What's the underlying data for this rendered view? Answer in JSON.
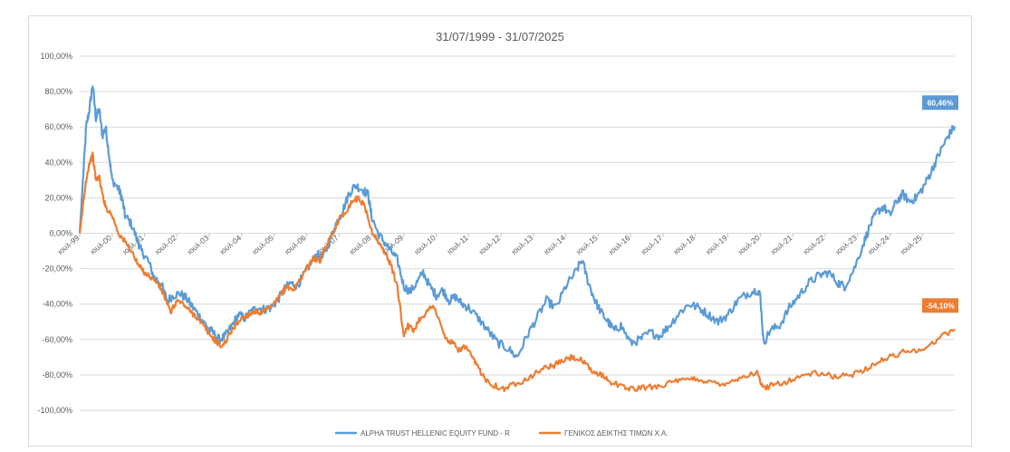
{
  "chart_data": {
    "type": "line",
    "title": "31/07/1999 - 31/07/2025",
    "ylim": [
      -100,
      100
    ],
    "yticks": [
      100,
      80,
      60,
      40,
      20,
      0,
      -20,
      -40,
      -60,
      -80,
      -100
    ],
    "ytick_labels": [
      "100,00%",
      "80,00%",
      "60,00%",
      "40,00%",
      "20,00%",
      "0,00%",
      "-20,00%",
      "-40,00%",
      "-60,00%",
      "-80,00%",
      "-100,00%"
    ],
    "xlim": [
      1999,
      2025
    ],
    "xtick_labels": [
      "ιουλ-99",
      "ιουλ-00",
      "ιουλ-01",
      "ιουλ-02",
      "ιουλ-03",
      "ιουλ-04",
      "ιουλ-05",
      "ιουλ-06",
      "ιουλ-07",
      "ιουλ-08",
      "ιουλ-09",
      "ιουλ-10",
      "ιουλ-11",
      "ιουλ-12",
      "ιουλ-13",
      "ιουλ-14",
      "ιουλ-15",
      "ιουλ-16",
      "ιουλ-17",
      "ιουλ-18",
      "ιουλ-19",
      "ιουλ-20",
      "ιουλ-21",
      "ιουλ-22",
      "ιουλ-23",
      "ιουλ-24",
      "ιουλ-25"
    ],
    "series": [
      {
        "name": "ALPHA TRUST HELLENIC EQUITY FUND - R",
        "color": "#5B9BD5",
        "end_label": "60,46%",
        "points": [
          [
            1999.0,
            0
          ],
          [
            1999.1,
            30
          ],
          [
            1999.2,
            60
          ],
          [
            1999.3,
            70
          ],
          [
            1999.4,
            84
          ],
          [
            1999.5,
            65
          ],
          [
            1999.6,
            70
          ],
          [
            1999.7,
            55
          ],
          [
            1999.8,
            60
          ],
          [
            1999.9,
            45
          ],
          [
            2000.0,
            30
          ],
          [
            2000.2,
            25
          ],
          [
            2000.3,
            20
          ],
          [
            2000.4,
            10
          ],
          [
            2000.6,
            5
          ],
          [
            2000.8,
            -5
          ],
          [
            2000.9,
            -10
          ],
          [
            2001.1,
            -15
          ],
          [
            2001.3,
            -25
          ],
          [
            2001.5,
            -28
          ],
          [
            2001.7,
            -38
          ],
          [
            2001.9,
            -35
          ],
          [
            2002.1,
            -34
          ],
          [
            2002.3,
            -37
          ],
          [
            2002.5,
            -42
          ],
          [
            2002.7,
            -47
          ],
          [
            2002.9,
            -52
          ],
          [
            2003.1,
            -56
          ],
          [
            2003.3,
            -60
          ],
          [
            2003.5,
            -58
          ],
          [
            2003.7,
            -52
          ],
          [
            2003.9,
            -46
          ],
          [
            2004.1,
            -48
          ],
          [
            2004.3,
            -44
          ],
          [
            2004.5,
            -42
          ],
          [
            2004.7,
            -43
          ],
          [
            2004.9,
            -42
          ],
          [
            2005.1,
            -38
          ],
          [
            2005.3,
            -32
          ],
          [
            2005.5,
            -28
          ],
          [
            2005.7,
            -30
          ],
          [
            2005.9,
            -24
          ],
          [
            2006.1,
            -18
          ],
          [
            2006.3,
            -12
          ],
          [
            2006.5,
            -14
          ],
          [
            2006.7,
            -5
          ],
          [
            2006.9,
            5
          ],
          [
            2007.1,
            12
          ],
          [
            2007.3,
            22
          ],
          [
            2007.5,
            27
          ],
          [
            2007.7,
            25
          ],
          [
            2007.9,
            22
          ],
          [
            2008.0,
            10
          ],
          [
            2008.2,
            0
          ],
          [
            2008.4,
            -5
          ],
          [
            2008.6,
            -10
          ],
          [
            2008.8,
            -15
          ],
          [
            2009.0,
            -30
          ],
          [
            2009.2,
            -33
          ],
          [
            2009.4,
            -28
          ],
          [
            2009.6,
            -22
          ],
          [
            2009.8,
            -30
          ],
          [
            2010.0,
            -35
          ],
          [
            2010.2,
            -32
          ],
          [
            2010.4,
            -38
          ],
          [
            2010.6,
            -36
          ],
          [
            2010.8,
            -40
          ],
          [
            2011.0,
            -42
          ],
          [
            2011.3,
            -48
          ],
          [
            2011.6,
            -55
          ],
          [
            2011.9,
            -62
          ],
          [
            2012.2,
            -65
          ],
          [
            2012.5,
            -70
          ],
          [
            2012.8,
            -58
          ],
          [
            2013.1,
            -48
          ],
          [
            2013.4,
            -38
          ],
          [
            2013.7,
            -42
          ],
          [
            2014.0,
            -30
          ],
          [
            2014.3,
            -22
          ],
          [
            2014.5,
            -15
          ],
          [
            2014.7,
            -28
          ],
          [
            2014.9,
            -38
          ],
          [
            2015.1,
            -45
          ],
          [
            2015.3,
            -50
          ],
          [
            2015.5,
            -55
          ],
          [
            2015.7,
            -52
          ],
          [
            2016.0,
            -62
          ],
          [
            2016.3,
            -60
          ],
          [
            2016.6,
            -56
          ],
          [
            2016.9,
            -58
          ],
          [
            2017.2,
            -52
          ],
          [
            2017.5,
            -45
          ],
          [
            2017.8,
            -40
          ],
          [
            2018.1,
            -42
          ],
          [
            2018.4,
            -46
          ],
          [
            2018.7,
            -50
          ],
          [
            2019.0,
            -46
          ],
          [
            2019.3,
            -38
          ],
          [
            2019.6,
            -34
          ],
          [
            2019.9,
            -32
          ],
          [
            2020.0,
            -35
          ],
          [
            2020.1,
            -62
          ],
          [
            2020.3,
            -55
          ],
          [
            2020.6,
            -52
          ],
          [
            2020.9,
            -42
          ],
          [
            2021.2,
            -35
          ],
          [
            2021.5,
            -28
          ],
          [
            2021.8,
            -24
          ],
          [
            2022.1,
            -22
          ],
          [
            2022.4,
            -28
          ],
          [
            2022.6,
            -30
          ],
          [
            2022.9,
            -20
          ],
          [
            2023.2,
            -5
          ],
          [
            2023.4,
            5
          ],
          [
            2023.6,
            12
          ],
          [
            2023.8,
            15
          ],
          [
            2024.0,
            10
          ],
          [
            2024.2,
            18
          ],
          [
            2024.4,
            22
          ],
          [
            2024.6,
            18
          ],
          [
            2024.8,
            20
          ],
          [
            2025.0,
            25
          ],
          [
            2025.2,
            32
          ],
          [
            2025.4,
            40
          ],
          [
            2025.6,
            48
          ],
          [
            2025.8,
            55
          ],
          [
            2026.0,
            60.46
          ]
        ]
      },
      {
        "name": "ΓΕΝΙΚΟΣ ΔΕΙΚΤΗΣ ΤΙΜΩΝ Χ.Α.",
        "color": "#ED7D31",
        "end_label": "-54,10%",
        "points": [
          [
            1999.0,
            0
          ],
          [
            1999.1,
            15
          ],
          [
            1999.2,
            30
          ],
          [
            1999.3,
            40
          ],
          [
            1999.4,
            44
          ],
          [
            1999.5,
            30
          ],
          [
            1999.6,
            32
          ],
          [
            1999.7,
            22
          ],
          [
            1999.8,
            15
          ],
          [
            2000.0,
            10
          ],
          [
            2000.2,
            0
          ],
          [
            2000.4,
            -5
          ],
          [
            2000.6,
            -10
          ],
          [
            2000.8,
            -18
          ],
          [
            2001.0,
            -22
          ],
          [
            2001.2,
            -25
          ],
          [
            2001.4,
            -28
          ],
          [
            2001.6,
            -35
          ],
          [
            2001.8,
            -45
          ],
          [
            2002.0,
            -38
          ],
          [
            2002.2,
            -40
          ],
          [
            2002.4,
            -44
          ],
          [
            2002.6,
            -47
          ],
          [
            2002.8,
            -52
          ],
          [
            2003.0,
            -57
          ],
          [
            2003.2,
            -61
          ],
          [
            2003.4,
            -64
          ],
          [
            2003.6,
            -58
          ],
          [
            2003.8,
            -52
          ],
          [
            2004.0,
            -48
          ],
          [
            2004.2,
            -46
          ],
          [
            2004.4,
            -44
          ],
          [
            2004.6,
            -45
          ],
          [
            2004.8,
            -43
          ],
          [
            2005.0,
            -40
          ],
          [
            2005.2,
            -35
          ],
          [
            2005.4,
            -30
          ],
          [
            2005.6,
            -32
          ],
          [
            2005.8,
            -26
          ],
          [
            2006.0,
            -20
          ],
          [
            2006.2,
            -14
          ],
          [
            2006.4,
            -16
          ],
          [
            2006.6,
            -8
          ],
          [
            2006.8,
            0
          ],
          [
            2007.0,
            8
          ],
          [
            2007.2,
            12
          ],
          [
            2007.4,
            18
          ],
          [
            2007.6,
            20
          ],
          [
            2007.8,
            15
          ],
          [
            2008.0,
            2
          ],
          [
            2008.2,
            -5
          ],
          [
            2008.4,
            -10
          ],
          [
            2008.6,
            -18
          ],
          [
            2008.8,
            -30
          ],
          [
            2009.0,
            -58
          ],
          [
            2009.1,
            -52
          ],
          [
            2009.3,
            -55
          ],
          [
            2009.5,
            -48
          ],
          [
            2009.7,
            -45
          ],
          [
            2009.9,
            -40
          ],
          [
            2010.1,
            -50
          ],
          [
            2010.3,
            -60
          ],
          [
            2010.5,
            -62
          ],
          [
            2010.7,
            -66
          ],
          [
            2010.9,
            -64
          ],
          [
            2011.1,
            -70
          ],
          [
            2011.3,
            -76
          ],
          [
            2011.5,
            -82
          ],
          [
            2011.8,
            -86
          ],
          [
            2012.1,
            -88
          ],
          [
            2012.4,
            -85
          ],
          [
            2012.7,
            -83
          ],
          [
            2013.0,
            -80
          ],
          [
            2013.3,
            -76
          ],
          [
            2013.6,
            -75
          ],
          [
            2013.9,
            -72
          ],
          [
            2014.2,
            -70
          ],
          [
            2014.5,
            -72
          ],
          [
            2014.8,
            -78
          ],
          [
            2015.1,
            -80
          ],
          [
            2015.4,
            -84
          ],
          [
            2015.8,
            -87
          ],
          [
            2016.1,
            -88
          ],
          [
            2016.5,
            -87
          ],
          [
            2016.9,
            -86
          ],
          [
            2017.3,
            -84
          ],
          [
            2017.7,
            -83
          ],
          [
            2018.0,
            -82
          ],
          [
            2018.4,
            -84
          ],
          [
            2018.8,
            -85
          ],
          [
            2019.2,
            -83
          ],
          [
            2019.6,
            -80
          ],
          [
            2019.9,
            -79
          ],
          [
            2020.1,
            -88
          ],
          [
            2020.4,
            -85
          ],
          [
            2020.8,
            -84
          ],
          [
            2021.2,
            -81
          ],
          [
            2021.6,
            -79
          ],
          [
            2022.0,
            -80
          ],
          [
            2022.4,
            -81
          ],
          [
            2022.8,
            -80
          ],
          [
            2023.2,
            -77
          ],
          [
            2023.6,
            -73
          ],
          [
            2024.0,
            -70
          ],
          [
            2024.4,
            -67
          ],
          [
            2024.8,
            -66
          ],
          [
            2025.2,
            -64
          ],
          [
            2025.6,
            -58
          ],
          [
            2026.0,
            -54.1
          ]
        ]
      }
    ]
  }
}
